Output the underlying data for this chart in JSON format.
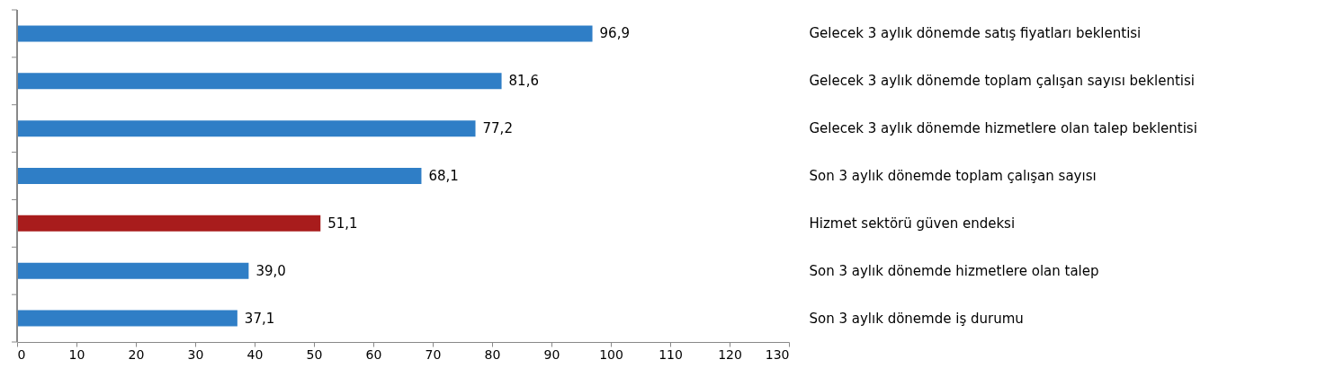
{
  "chart_data": {
    "type": "bar",
    "orientation": "horizontal",
    "categories": [
      "Gelecek 3 aylık dönemde satış fiyatları beklentisi",
      "Gelecek 3 aylık dönemde toplam çalışan sayısı beklentisi",
      "Gelecek 3 aylık dönemde hizmetlere olan talep beklentisi",
      "Son 3 aylık dönemde toplam çalışan sayısı",
      "Hizmet sektörü güven endeksi",
      "Son 3 aylık dönemde hizmetlere olan talep",
      "Son 3 aylık dönemde iş durumu"
    ],
    "values": [
      96.9,
      81.6,
      77.2,
      68.1,
      51.1,
      39.0,
      37.1
    ],
    "value_labels": [
      "96,9",
      "81,6",
      "77,2",
      "68,1",
      "51,1",
      "39,0",
      "37,1"
    ],
    "colors": [
      "#2f7ec6",
      "#2f7ec6",
      "#2f7ec6",
      "#2f7ec6",
      "#a81c1c",
      "#2f7ec6",
      "#2f7ec6"
    ],
    "xlim": [
      0,
      130
    ],
    "xticks": [
      0,
      10,
      20,
      30,
      40,
      50,
      60,
      70,
      80,
      90,
      100,
      110,
      120,
      130
    ],
    "grid": false
  }
}
